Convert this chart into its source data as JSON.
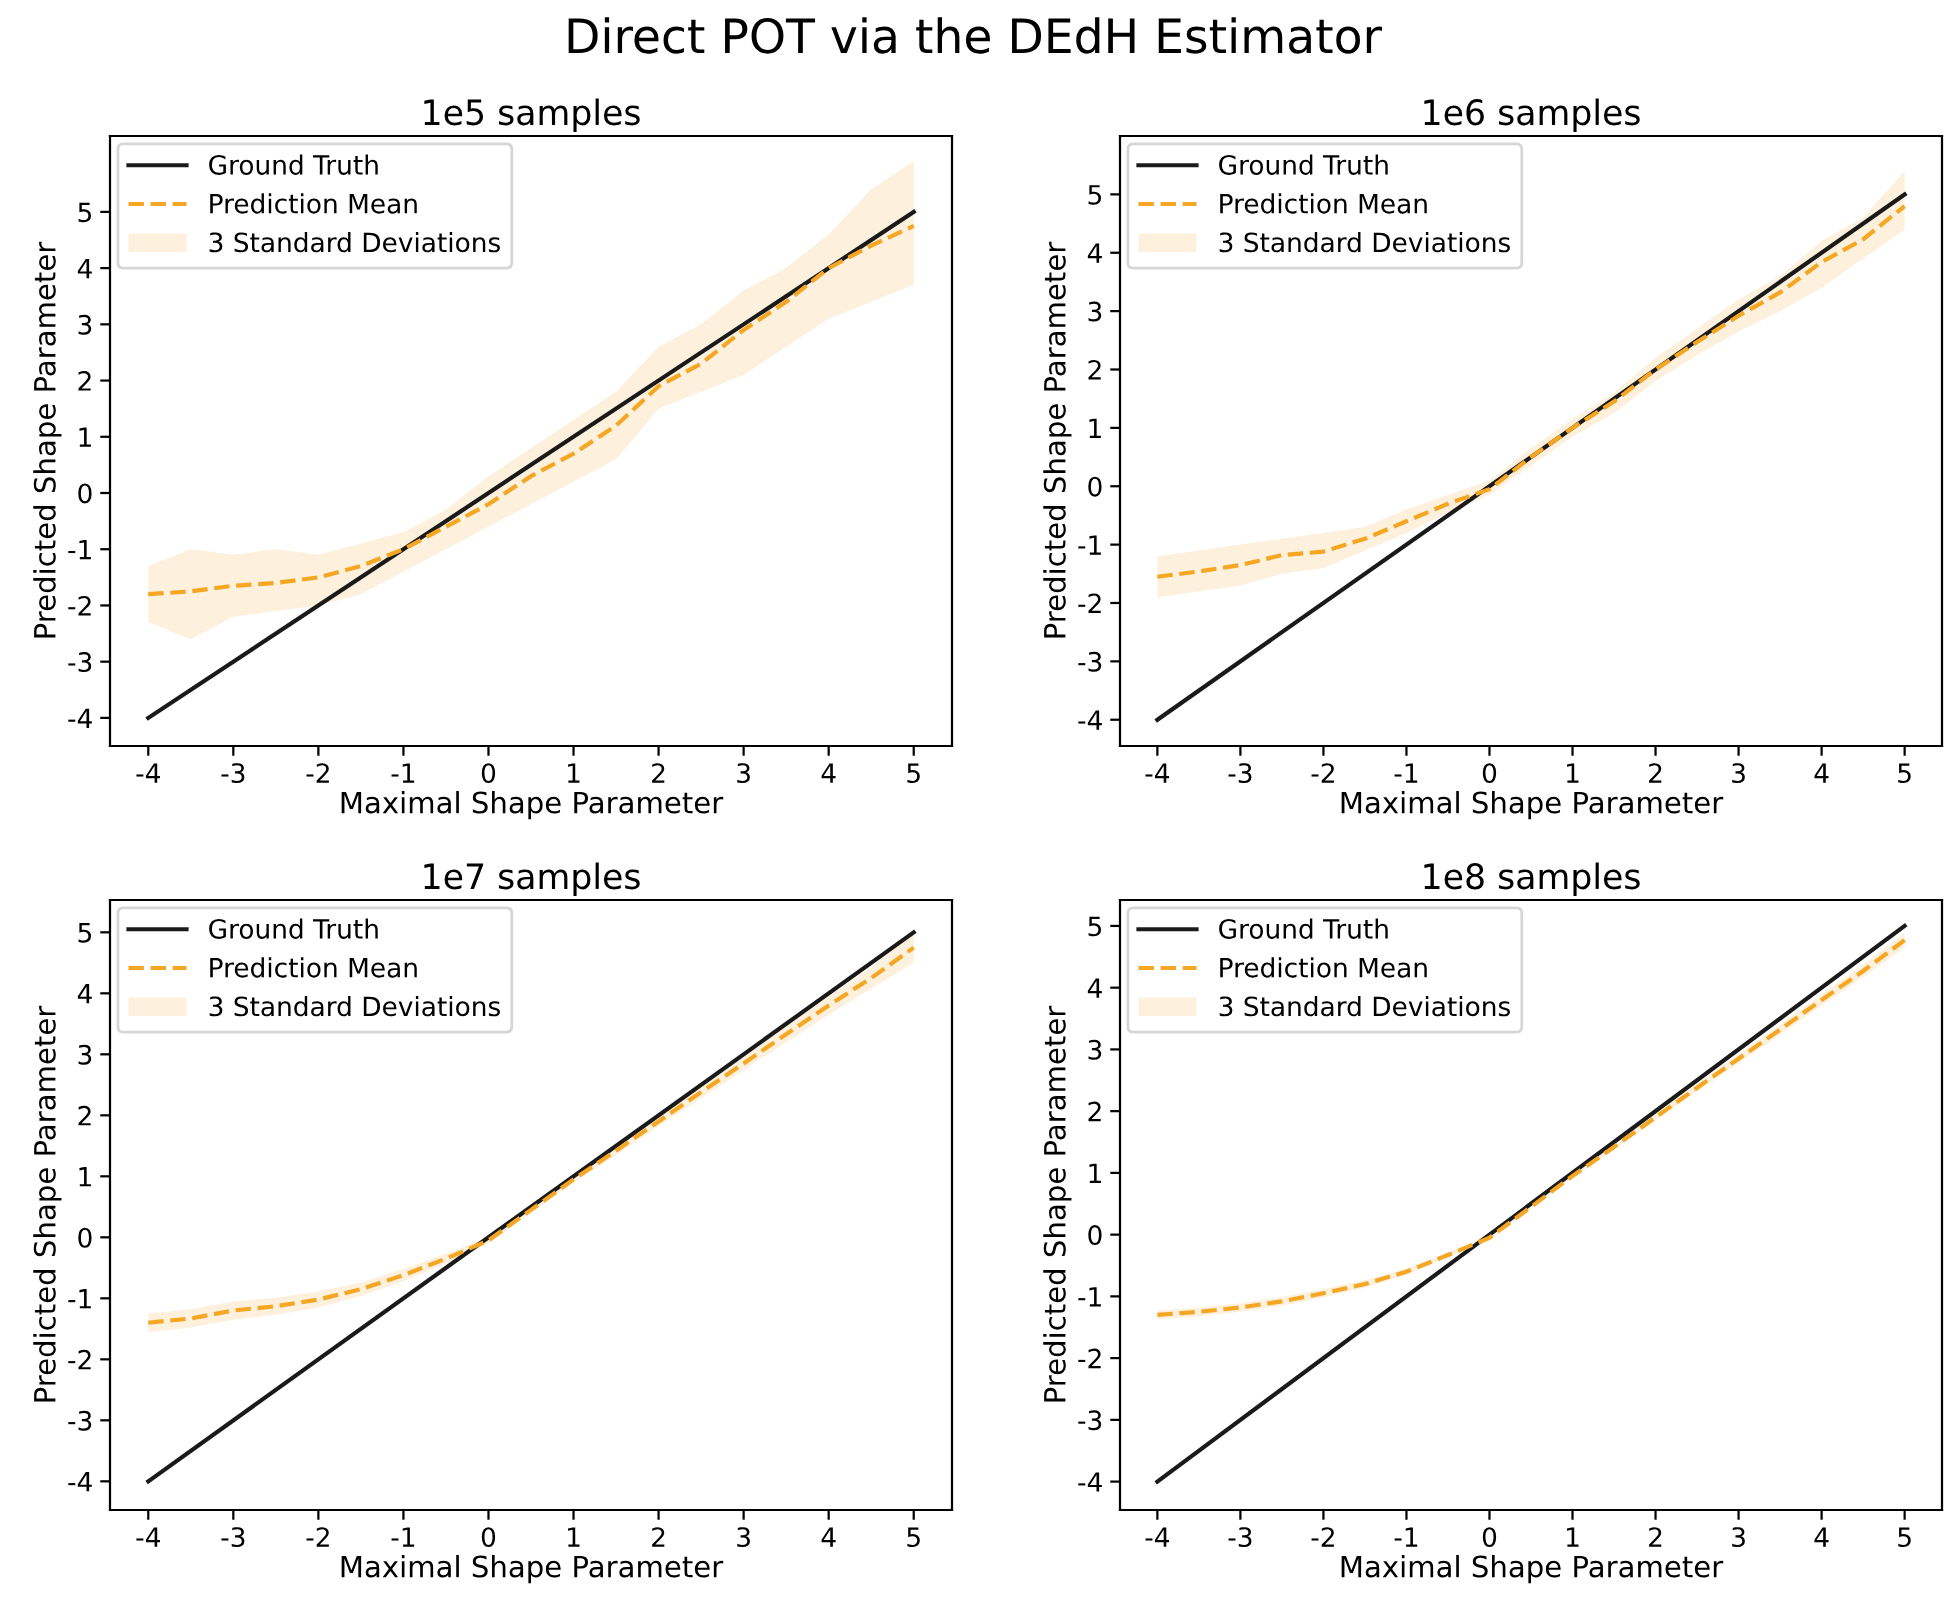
{
  "chart_data": [
    {
      "type": "line",
      "title": "1e5 samples",
      "xlabel": "Maximal Shape Parameter",
      "ylabel": "Predicted Shape Parameter",
      "annotations": [
        "Direct POT via the DEdH Estimator"
      ],
      "xlim": [
        -4.45,
        5.45
      ],
      "ylim": [
        -4.5,
        6.35
      ],
      "xticks": [
        -4,
        -3,
        -2,
        -1,
        0,
        1,
        2,
        3,
        4,
        5
      ],
      "yticks": [
        -4,
        -3,
        -2,
        -1,
        0,
        1,
        2,
        3,
        4,
        5
      ],
      "legend": "top left",
      "grid": false,
      "series": [
        {
          "name": "Ground Truth",
          "color": "#1a1a1a",
          "line_style": "solid",
          "x": [
            -4,
            5
          ],
          "values": [
            -4,
            5
          ]
        },
        {
          "name": "Prediction Mean",
          "color": "#f5a623",
          "line_style": "dashed",
          "x": [
            -4,
            -3.5,
            -3,
            -2.5,
            -2,
            -1.5,
            -1,
            -0.5,
            0,
            0.5,
            1,
            1.5,
            2,
            2.5,
            3,
            3.5,
            4,
            4.5,
            5
          ],
          "values": [
            -1.8,
            -1.75,
            -1.65,
            -1.6,
            -1.5,
            -1.3,
            -1.0,
            -0.6,
            -0.2,
            0.3,
            0.7,
            1.2,
            1.9,
            2.3,
            2.9,
            3.4,
            4.0,
            4.4,
            4.75
          ]
        },
        {
          "name": "3 Standard Deviations",
          "type": "area",
          "color": "#fdf0dc",
          "x": [
            -4,
            -3.5,
            -3,
            -2.5,
            -2,
            -1.5,
            -1,
            -0.5,
            0,
            0.5,
            1,
            1.5,
            2,
            2.5,
            3,
            3.5,
            4,
            4.5,
            5
          ],
          "values": [
            null,
            null,
            null,
            null,
            null,
            null,
            null,
            null,
            null,
            null,
            null,
            null,
            null,
            null,
            null,
            null,
            null,
            null,
            null
          ],
          "lower": [
            -2.3,
            -2.6,
            -2.2,
            -2.1,
            -2.0,
            -1.8,
            -1.4,
            -1.0,
            -0.6,
            -0.2,
            0.2,
            0.6,
            1.5,
            1.8,
            2.1,
            2.6,
            3.1,
            3.4,
            3.7
          ],
          "upper": [
            -1.3,
            -1.0,
            -1.1,
            -1.0,
            -1.1,
            -0.9,
            -0.7,
            -0.3,
            0.3,
            0.8,
            1.3,
            1.8,
            2.6,
            3.0,
            3.6,
            4.0,
            4.6,
            5.4,
            5.9
          ]
        }
      ]
    },
    {
      "type": "line",
      "title": "1e6 samples",
      "xlabel": "Maximal Shape Parameter",
      "ylabel": "Predicted Shape Parameter",
      "xlim": [
        -4.45,
        5.45
      ],
      "ylim": [
        -4.45,
        6.0
      ],
      "xticks": [
        -4,
        -3,
        -2,
        -1,
        0,
        1,
        2,
        3,
        4,
        5
      ],
      "yticks": [
        -4,
        -3,
        -2,
        -1,
        0,
        1,
        2,
        3,
        4,
        5
      ],
      "legend": "top left",
      "grid": false,
      "series": [
        {
          "name": "Ground Truth",
          "color": "#1a1a1a",
          "line_style": "solid",
          "x": [
            -4,
            5
          ],
          "values": [
            -4,
            5
          ]
        },
        {
          "name": "Prediction Mean",
          "color": "#f5a623",
          "line_style": "dashed",
          "x": [
            -4,
            -3.5,
            -3,
            -2.5,
            -2,
            -1.5,
            -1,
            -0.5,
            0,
            0.5,
            1,
            1.5,
            2,
            2.5,
            3,
            3.5,
            4,
            4.5,
            5
          ],
          "values": [
            -1.55,
            -1.46,
            -1.35,
            -1.18,
            -1.12,
            -0.9,
            -0.6,
            -0.3,
            -0.05,
            0.5,
            1.0,
            1.45,
            2.0,
            2.47,
            2.92,
            3.32,
            3.84,
            4.23,
            4.8
          ]
        },
        {
          "name": "3 Standard Deviations",
          "type": "area",
          "color": "#fdf0dc",
          "x": [
            -4,
            -3.5,
            -3,
            -2.5,
            -2,
            -1.5,
            -1,
            -0.5,
            0,
            0.5,
            1,
            1.5,
            2,
            2.5,
            3,
            3.5,
            4,
            4.5,
            5
          ],
          "values": [
            null,
            null,
            null,
            null,
            null,
            null,
            null,
            null,
            null,
            null,
            null,
            null,
            null,
            null,
            null,
            null,
            null,
            null,
            null
          ],
          "lower": [
            -1.9,
            -1.8,
            -1.7,
            -1.5,
            -1.4,
            -1.1,
            -0.8,
            -0.45,
            -0.15,
            0.35,
            0.85,
            1.25,
            1.8,
            2.25,
            2.65,
            3.0,
            3.4,
            3.9,
            4.4
          ],
          "upper": [
            -1.2,
            -1.1,
            -1.0,
            -0.9,
            -0.8,
            -0.7,
            -0.4,
            -0.15,
            0.1,
            0.65,
            1.15,
            1.6,
            2.2,
            2.7,
            3.2,
            3.6,
            4.2,
            4.6,
            5.4
          ]
        }
      ]
    },
    {
      "type": "line",
      "title": "1e7 samples",
      "xlabel": "Maximal Shape Parameter",
      "ylabel": "Predicted Shape Parameter",
      "xlim": [
        -4.45,
        5.45
      ],
      "ylim": [
        -4.47,
        5.53
      ],
      "xticks": [
        -4,
        -3,
        -2,
        -1,
        0,
        1,
        2,
        3,
        4,
        5
      ],
      "yticks": [
        -4,
        -3,
        -2,
        -1,
        0,
        1,
        2,
        3,
        4,
        5
      ],
      "legend": "top left",
      "grid": false,
      "series": [
        {
          "name": "Ground Truth",
          "color": "#1a1a1a",
          "line_style": "solid",
          "x": [
            -4,
            5
          ],
          "values": [
            -4,
            5
          ]
        },
        {
          "name": "Prediction Mean",
          "color": "#f5a623",
          "line_style": "dashed",
          "x": [
            -4,
            -3.5,
            -3,
            -2.5,
            -2,
            -1.5,
            -1,
            -0.5,
            0,
            0.5,
            1,
            1.5,
            2,
            2.5,
            3,
            3.5,
            4,
            4.5,
            5
          ],
          "values": [
            -1.4,
            -1.33,
            -1.2,
            -1.13,
            -1.02,
            -0.85,
            -0.62,
            -0.35,
            -0.05,
            0.45,
            0.95,
            1.42,
            1.9,
            2.38,
            2.85,
            3.33,
            3.8,
            4.25,
            4.75
          ]
        },
        {
          "name": "3 Standard Deviations",
          "type": "area",
          "color": "#fdf0dc",
          "x": [
            -4,
            -3.5,
            -3,
            -2.5,
            -2,
            -1.5,
            -1,
            -0.5,
            0,
            0.5,
            1,
            1.5,
            2,
            2.5,
            3,
            3.5,
            4,
            4.5,
            5
          ],
          "values": [
            null,
            null,
            null,
            null,
            null,
            null,
            null,
            null,
            null,
            null,
            null,
            null,
            null,
            null,
            null,
            null,
            null,
            null,
            null
          ],
          "lower": [
            -1.55,
            -1.48,
            -1.35,
            -1.27,
            -1.15,
            -0.96,
            -0.72,
            -0.43,
            -0.1,
            0.4,
            0.89,
            1.35,
            1.82,
            2.28,
            2.74,
            3.2,
            3.65,
            4.08,
            4.5
          ],
          "upper": [
            -1.25,
            -1.18,
            -1.05,
            -0.99,
            -0.89,
            -0.74,
            -0.52,
            -0.27,
            0.0,
            0.5,
            1.01,
            1.49,
            1.98,
            2.48,
            2.96,
            3.46,
            3.95,
            4.42,
            5.0
          ]
        }
      ]
    },
    {
      "type": "line",
      "title": "1e8 samples",
      "xlabel": "Maximal Shape Parameter",
      "ylabel": "Predicted Shape Parameter",
      "xlim": [
        -4.45,
        5.45
      ],
      "ylim": [
        -4.46,
        5.42
      ],
      "xticks": [
        -4,
        -3,
        -2,
        -1,
        0,
        1,
        2,
        3,
        4,
        5
      ],
      "yticks": [
        -4,
        -3,
        -2,
        -1,
        0,
        1,
        2,
        3,
        4,
        5
      ],
      "legend": "top left",
      "grid": false,
      "series": [
        {
          "name": "Ground Truth",
          "color": "#1a1a1a",
          "line_style": "solid",
          "x": [
            -4,
            5
          ],
          "values": [
            -4,
            5
          ]
        },
        {
          "name": "Prediction Mean",
          "color": "#f5a623",
          "line_style": "dashed",
          "x": [
            -4,
            -3.5,
            -3,
            -2.5,
            -2,
            -1.5,
            -1,
            -0.5,
            0,
            0.5,
            1,
            1.5,
            2,
            2.5,
            3,
            3.5,
            4,
            4.5,
            5
          ],
          "values": [
            -1.3,
            -1.25,
            -1.18,
            -1.08,
            -0.95,
            -0.8,
            -0.6,
            -0.33,
            -0.05,
            0.45,
            0.95,
            1.42,
            1.9,
            2.38,
            2.85,
            3.32,
            3.8,
            4.27,
            4.77
          ]
        },
        {
          "name": "3 Standard Deviations",
          "type": "area",
          "color": "#fdf0dc",
          "x": [
            -4,
            -3.5,
            -3,
            -2.5,
            -2,
            -1.5,
            -1,
            -0.5,
            0,
            0.5,
            1,
            1.5,
            2,
            2.5,
            3,
            3.5,
            4,
            4.5,
            5
          ],
          "values": [
            null,
            null,
            null,
            null,
            null,
            null,
            null,
            null,
            null,
            null,
            null,
            null,
            null,
            null,
            null,
            null,
            null,
            null,
            null
          ],
          "lower": [
            -1.37,
            -1.32,
            -1.25,
            -1.15,
            -1.02,
            -0.86,
            -0.65,
            -0.37,
            -0.08,
            0.42,
            0.92,
            1.38,
            1.85,
            2.32,
            2.78,
            3.24,
            3.71,
            4.17,
            4.65
          ],
          "upper": [
            -1.23,
            -1.18,
            -1.11,
            -1.01,
            -0.88,
            -0.74,
            -0.55,
            -0.29,
            -0.02,
            0.48,
            0.98,
            1.46,
            1.95,
            2.44,
            2.92,
            3.4,
            3.89,
            4.37,
            4.89
          ]
        }
      ]
    }
  ]
}
